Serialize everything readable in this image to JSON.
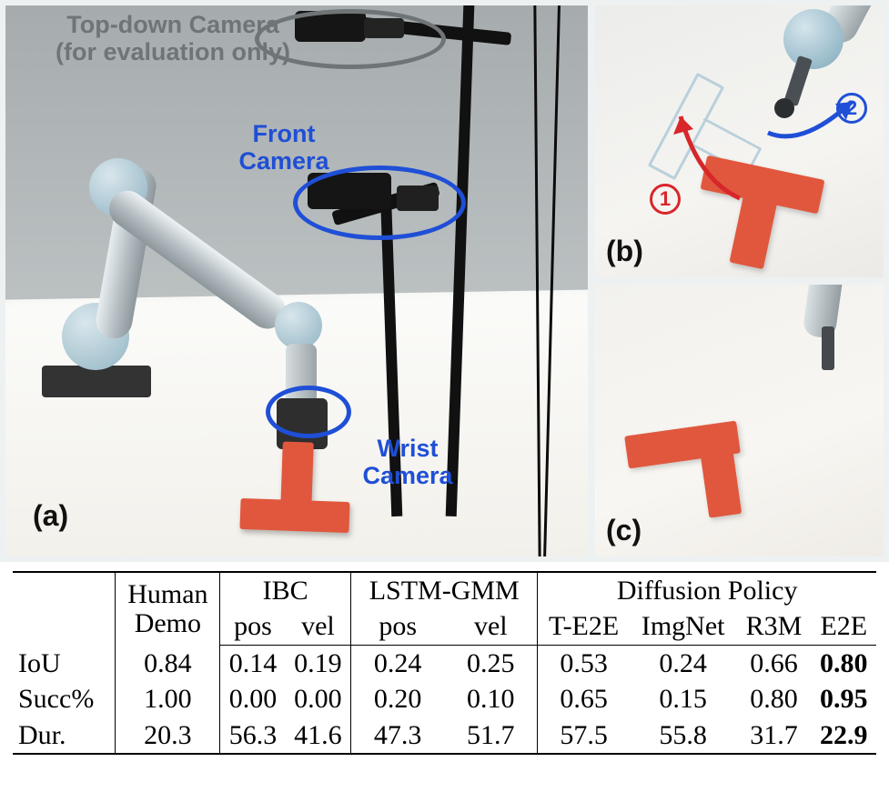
{
  "figure": {
    "panel_a": {
      "label": "(a)",
      "annot_top": "Top-down Camera\n(for evaluation only)",
      "annot_front": "Front\nCamera",
      "annot_wrist": "Wrist\nCamera",
      "colors": {
        "topdown": "#6f7576",
        "camera": "#1f4fd6",
        "tblock": "#e1573d"
      }
    },
    "panel_b": {
      "label": "(b)",
      "marker1": "1",
      "marker2": "2",
      "colors": {
        "arrow_red": "#d8262a",
        "arrow_blue": "#1f4fd6",
        "outline": "#b9d0db",
        "tblock": "#e1573d"
      }
    },
    "panel_c": {
      "label": "(c)",
      "colors": {
        "tblock": "#e1573d"
      }
    }
  },
  "table": {
    "group_headers": {
      "human": "Human\nDemo",
      "ibc": "IBC",
      "lstm": "LSTM-GMM",
      "diff": "Diffusion Policy"
    },
    "sub_headers": {
      "ibc_pos": "pos",
      "ibc_vel": "vel",
      "lstm_pos": "pos",
      "lstm_vel": "vel",
      "dp_te2e": "T-E2E",
      "dp_imgnet": "ImgNet",
      "dp_r3m": "R3M",
      "dp_e2e": "E2E"
    },
    "metrics": [
      "IoU",
      "Succ%",
      "Dur."
    ],
    "rows": {
      "IoU": {
        "human": "0.84",
        "ibc_pos": "0.14",
        "ibc_vel": "0.19",
        "lstm_pos": "0.24",
        "lstm_vel": "0.25",
        "dp_te2e": "0.53",
        "dp_imgnet": "0.24",
        "dp_r3m": "0.66",
        "dp_e2e": "0.80"
      },
      "Succ%": {
        "human": "1.00",
        "ibc_pos": "0.00",
        "ibc_vel": "0.00",
        "lstm_pos": "0.20",
        "lstm_vel": "0.10",
        "dp_te2e": "0.65",
        "dp_imgnet": "0.15",
        "dp_r3m": "0.80",
        "dp_e2e": "0.95"
      },
      "Dur.": {
        "human": "20.3",
        "ibc_pos": "56.3",
        "ibc_vel": "41.6",
        "lstm_pos": "47.3",
        "lstm_vel": "51.7",
        "dp_te2e": "57.5",
        "dp_imgnet": "55.8",
        "dp_r3m": "31.7",
        "dp_e2e": "22.9"
      }
    },
    "bold_column": "dp_e2e",
    "font_family": "Times New Roman",
    "font_size_pt": 22,
    "rule_color": "#000000"
  }
}
